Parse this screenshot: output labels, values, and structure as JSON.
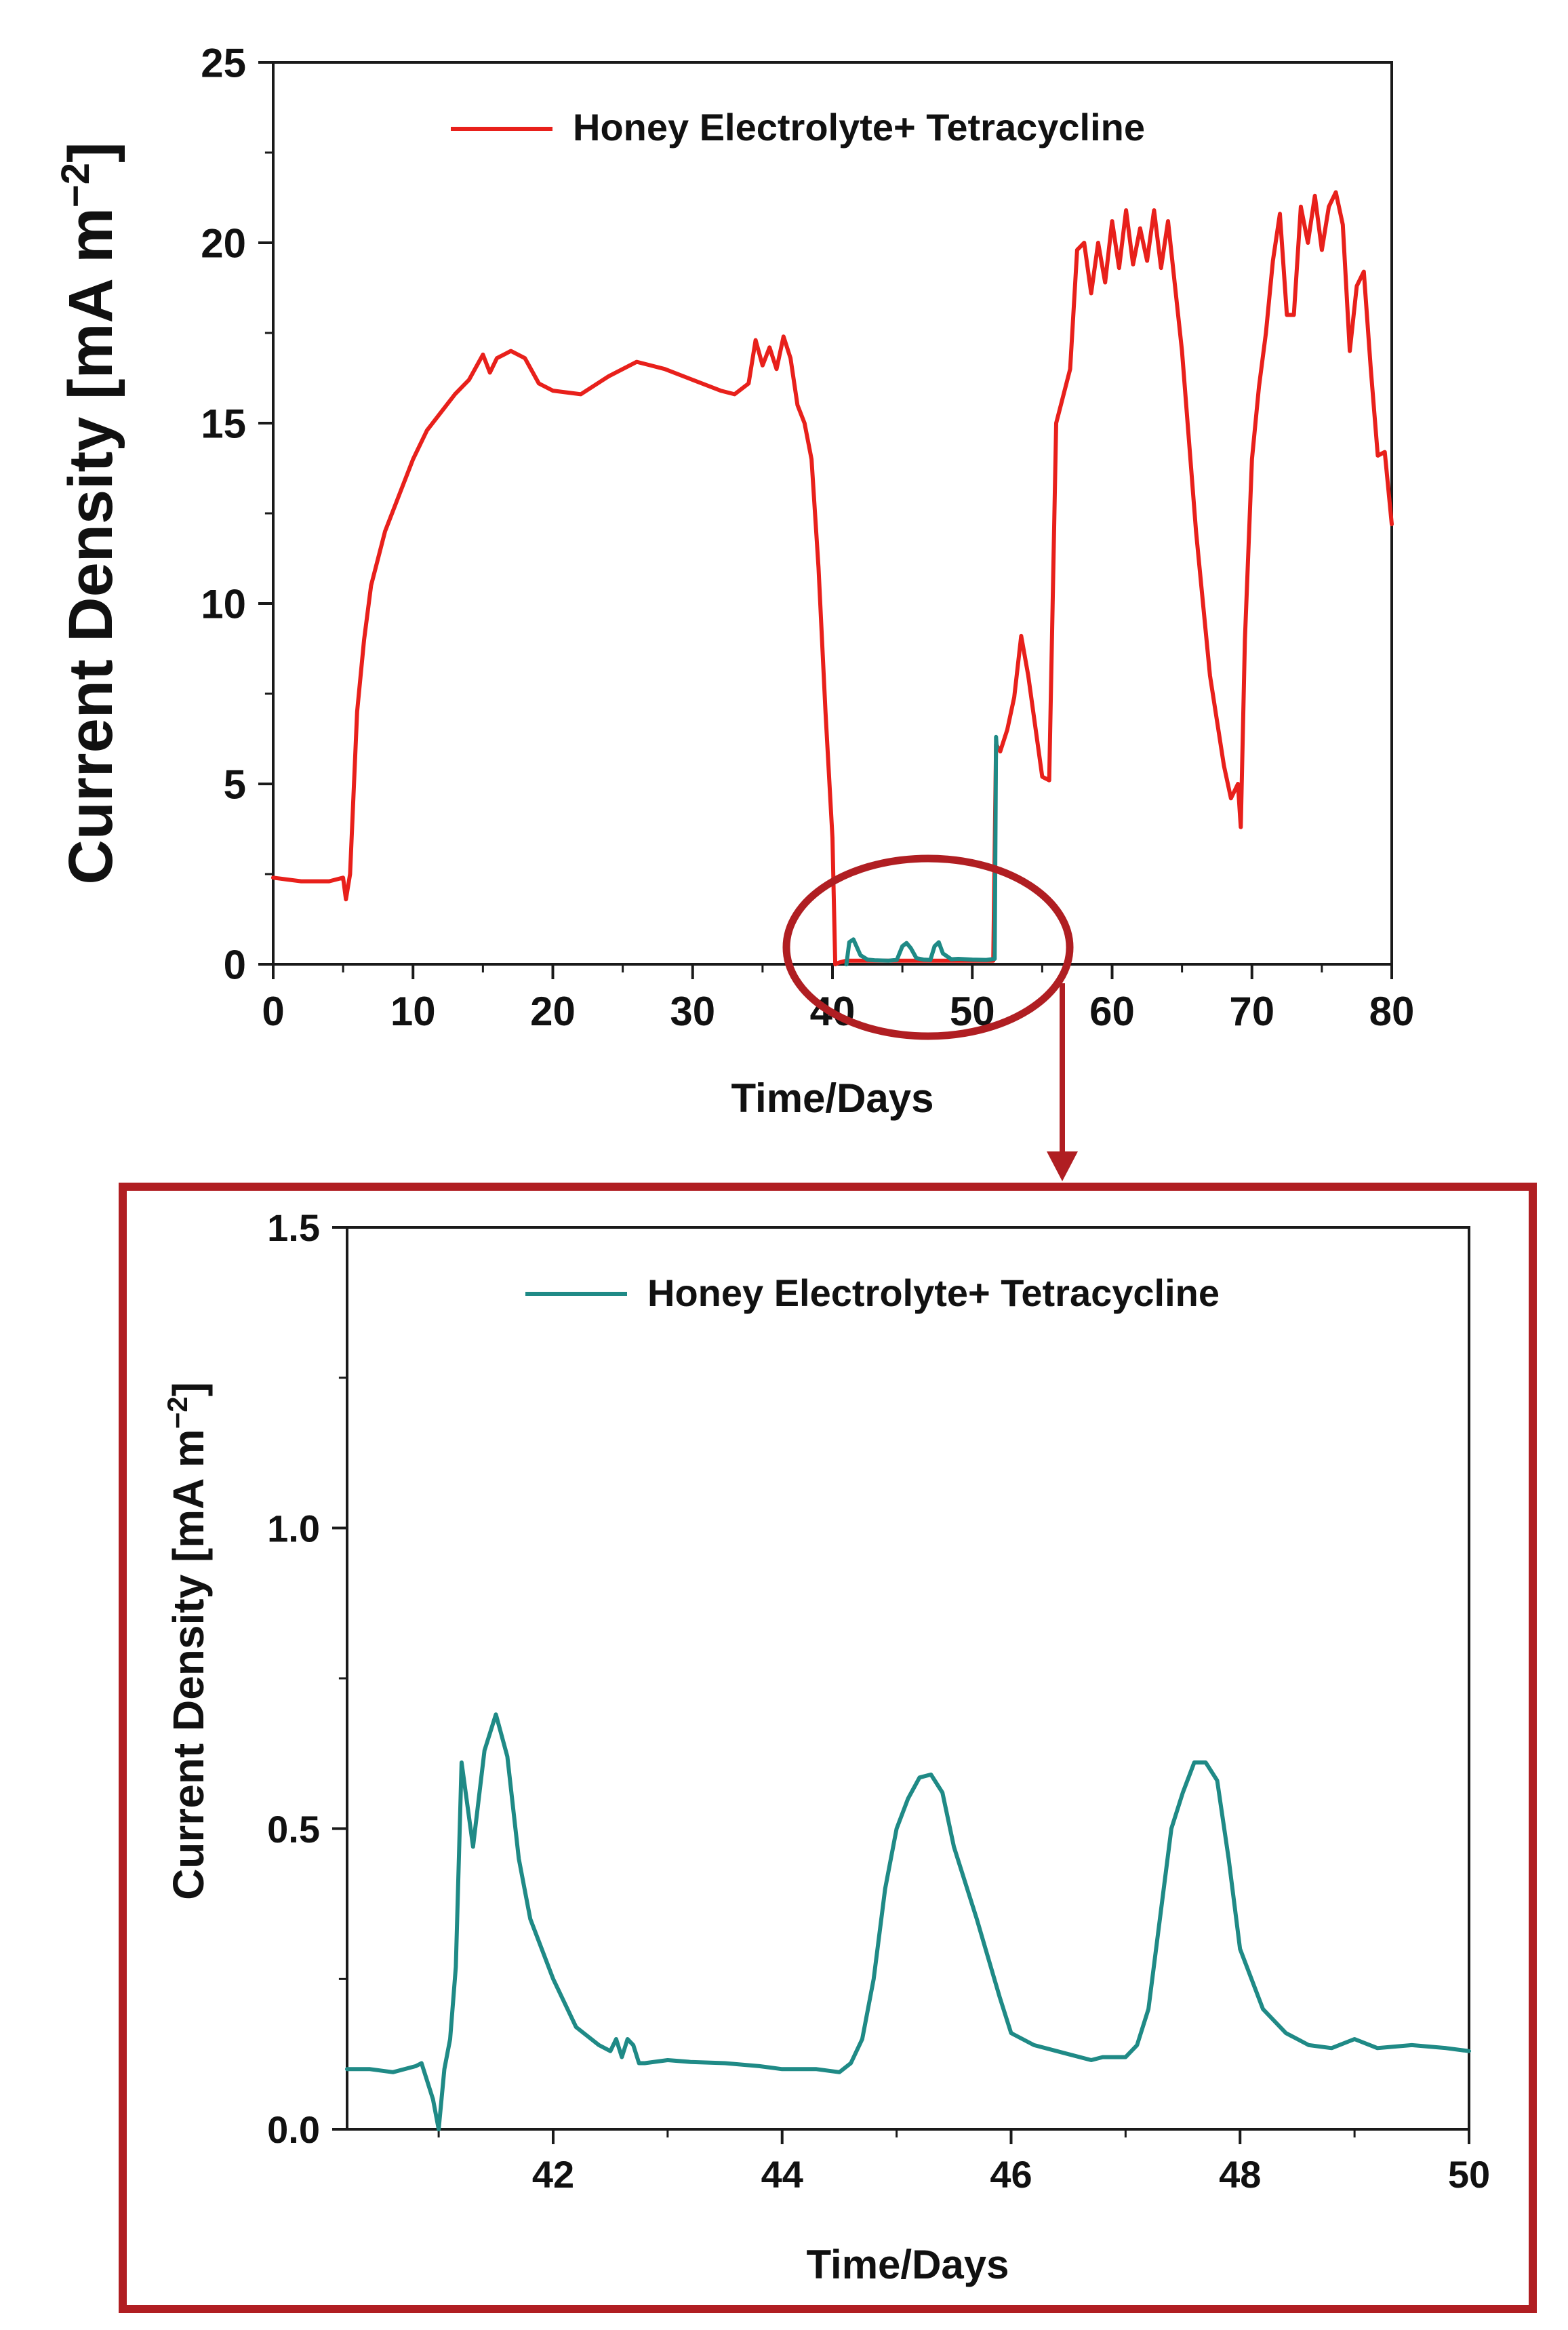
{
  "colors": {
    "series_main": "#e8201b",
    "series_zoom": "#1f8a86",
    "highlight": "#b01e22",
    "axis": "#1a1a1a"
  },
  "chart_data": [
    {
      "type": "line",
      "title": "",
      "xlabel": "Time/Days",
      "ylabel": "Current Density [mA m",
      "ylabel_sup": "−2",
      "ylabel_close": "]",
      "xlim": [
        0,
        80
      ],
      "ylim": [
        0,
        25
      ],
      "xticks": [
        "0",
        "10",
        "20",
        "30",
        "40",
        "50",
        "60",
        "70",
        "80"
      ],
      "yticks": [
        "0",
        "5",
        "10",
        "15",
        "20",
        "25"
      ],
      "legend": {
        "placement": "top",
        "entries": [
          "Honey Electrolyte+ Tetracycline"
        ]
      },
      "series": [
        {
          "name": "Honey Electrolyte+ Tetracycline",
          "color": "#e8201b",
          "x": [
            0,
            1,
            2,
            3,
            4,
            5,
            5.2,
            5.5,
            6,
            6.5,
            7,
            8,
            9,
            10,
            11,
            12,
            13,
            14,
            15,
            15.5,
            16,
            16.5,
            17,
            18,
            19,
            20,
            22,
            24,
            26,
            27,
            28,
            30,
            32,
            33,
            34,
            34.5,
            35,
            35.5,
            36,
            36.5,
            37,
            37.5,
            38,
            38.5,
            39,
            39.5,
            40,
            40.2,
            40.5,
            41,
            41.5,
            51.5,
            51.7,
            52,
            52.5,
            53,
            53.5,
            54,
            55,
            55.5,
            56,
            57,
            57.5,
            58,
            58.5,
            59,
            59.5,
            60,
            60.5,
            61,
            61.5,
            62,
            62.5,
            63,
            63.5,
            64,
            65,
            66,
            67,
            68,
            68.5,
            69,
            69.2,
            69.5,
            70,
            70.5,
            71,
            71.5,
            72,
            72.5,
            73,
            73.5,
            74,
            74.5,
            75,
            75.5,
            76,
            76.5,
            77,
            77.5,
            78,
            78.5,
            79,
            79.5,
            80
          ],
          "y": [
            2.4,
            2.35,
            2.3,
            2.3,
            2.3,
            2.4,
            1.8,
            2.5,
            7.0,
            9.0,
            10.5,
            12.0,
            13.0,
            14.0,
            14.8,
            15.3,
            15.8,
            16.2,
            16.9,
            16.4,
            16.8,
            16.9,
            17.0,
            16.8,
            16.1,
            15.9,
            15.8,
            16.3,
            16.7,
            16.6,
            16.5,
            16.2,
            15.9,
            15.8,
            16.1,
            17.3,
            16.6,
            17.1,
            16.5,
            17.4,
            16.8,
            15.5,
            15.0,
            14.0,
            11.0,
            7.0,
            3.5,
            0.0,
            0.05,
            0.1,
            0.1,
            0.1,
            6.1,
            5.9,
            6.5,
            7.4,
            9.1,
            8.0,
            5.2,
            5.1,
            15.0,
            16.5,
            19.8,
            20.0,
            18.6,
            20.0,
            18.9,
            20.6,
            19.3,
            20.9,
            19.4,
            20.4,
            19.5,
            20.9,
            19.3,
            20.6,
            17.0,
            12.0,
            8.0,
            5.5,
            4.6,
            5.0,
            3.8,
            9.0,
            14.0,
            16.0,
            17.5,
            19.5,
            20.8,
            18.0,
            18.0,
            21.0,
            20.0,
            21.3,
            19.8,
            21.0,
            21.4,
            20.5,
            17.0,
            18.8,
            19.2,
            16.5,
            14.1,
            14.2,
            12.2
          ]
        },
        {
          "name": "Honey Electrolyte+ Tetracycline",
          "color": "#1f8a86",
          "legend": false,
          "x": [
            41.0,
            41.2,
            41.5,
            42.0,
            42.5,
            43.0,
            44.0,
            44.6,
            45.0,
            45.3,
            45.6,
            46.0,
            46.5,
            47.0,
            47.3,
            47.6,
            47.9,
            48.5,
            49.0,
            50.0,
            51.0,
            51.6,
            51.7,
            51.75
          ],
          "y": [
            0.0,
            0.61,
            0.69,
            0.25,
            0.13,
            0.11,
            0.1,
            0.12,
            0.5,
            0.59,
            0.45,
            0.17,
            0.13,
            0.12,
            0.5,
            0.61,
            0.3,
            0.14,
            0.15,
            0.13,
            0.12,
            0.15,
            6.3,
            6.0
          ]
        }
      ]
    },
    {
      "type": "line",
      "title": "",
      "xlabel": "Time/Days",
      "ylabel": "Current Density [mA m",
      "ylabel_sup": "−2",
      "ylabel_close": "]",
      "xlim": [
        40.2,
        50
      ],
      "ylim": [
        0,
        1.5
      ],
      "xticks": [
        "42",
        "44",
        "46",
        "48",
        "50"
      ],
      "yticks": [
        "0.0",
        "0.5",
        "1.0",
        "1.5"
      ],
      "legend": {
        "placement": "top",
        "entries": [
          "Honey Electrolyte+ Tetracycline"
        ]
      },
      "series": [
        {
          "name": "Honey Electrolyte+ Tetracycline",
          "color": "#1f8a86",
          "x": [
            40.2,
            40.4,
            40.6,
            40.8,
            40.85,
            40.95,
            41.0,
            41.05,
            41.1,
            41.15,
            41.2,
            41.3,
            41.4,
            41.5,
            41.6,
            41.7,
            41.8,
            41.9,
            42.0,
            42.2,
            42.4,
            42.5,
            42.55,
            42.6,
            42.65,
            42.7,
            42.75,
            42.8,
            43.0,
            43.2,
            43.5,
            43.8,
            44.0,
            44.3,
            44.5,
            44.6,
            44.7,
            44.8,
            44.9,
            45.0,
            45.1,
            45.2,
            45.3,
            45.4,
            45.5,
            45.7,
            45.9,
            46.0,
            46.2,
            46.5,
            46.7,
            46.8,
            47.0,
            47.1,
            47.2,
            47.3,
            47.4,
            47.5,
            47.6,
            47.7,
            47.8,
            47.9,
            48.0,
            48.2,
            48.4,
            48.6,
            48.8,
            49.0,
            49.2,
            49.5,
            49.8,
            50.0
          ],
          "y": [
            0.1,
            0.1,
            0.095,
            0.105,
            0.11,
            0.05,
            0.0,
            0.1,
            0.15,
            0.27,
            0.61,
            0.47,
            0.63,
            0.69,
            0.62,
            0.45,
            0.35,
            0.3,
            0.25,
            0.17,
            0.14,
            0.13,
            0.15,
            0.12,
            0.15,
            0.14,
            0.11,
            0.11,
            0.115,
            0.112,
            0.11,
            0.105,
            0.1,
            0.1,
            0.095,
            0.11,
            0.15,
            0.25,
            0.4,
            0.5,
            0.55,
            0.585,
            0.59,
            0.56,
            0.47,
            0.35,
            0.22,
            0.16,
            0.14,
            0.125,
            0.115,
            0.12,
            0.12,
            0.14,
            0.2,
            0.35,
            0.5,
            0.56,
            0.61,
            0.61,
            0.58,
            0.45,
            0.3,
            0.2,
            0.16,
            0.14,
            0.135,
            0.15,
            0.135,
            0.14,
            0.135,
            0.13
          ]
        }
      ]
    }
  ]
}
